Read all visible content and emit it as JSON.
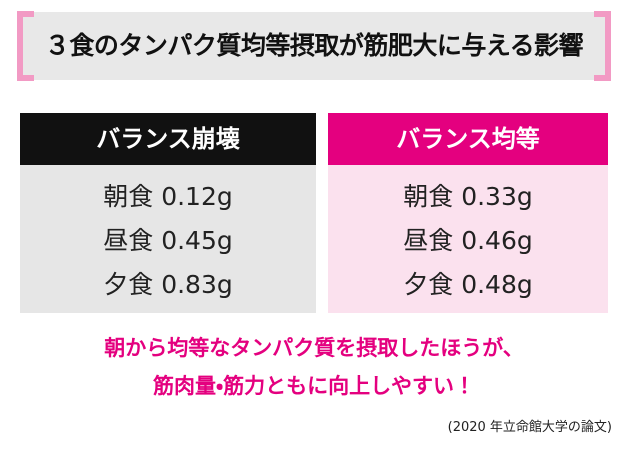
{
  "header": {
    "title": "３食のタンパク質均等摂取が筋肥大に与える影響"
  },
  "table": {
    "columns": [
      {
        "heading": "バランス崩壊",
        "rows": [
          "朝食 0.12g",
          "昼食 0.45g",
          "夕食 0.83g"
        ]
      },
      {
        "heading": "バランス均等",
        "rows": [
          "朝食 0.33g",
          "昼食 0.46g",
          "夕食 0.48g"
        ]
      }
    ]
  },
  "conclusion": {
    "lines": [
      "朝から均等なタンパク質を摂取したほうが、",
      "筋肉量・筋力ともに向上しやすい！"
    ]
  },
  "source": "(2020 年立命館大学の論文)"
}
